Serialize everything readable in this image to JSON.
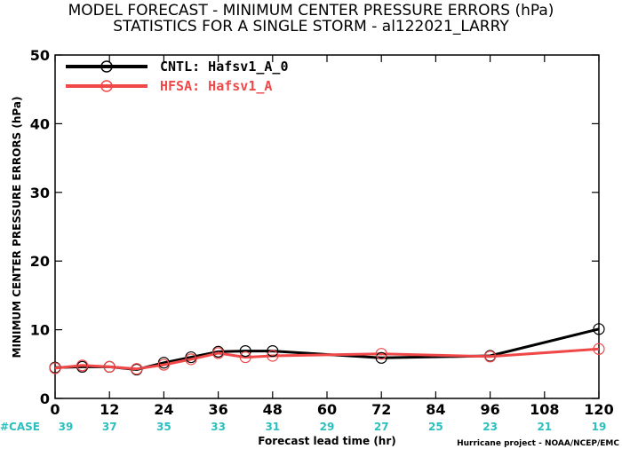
{
  "chart_data": {
    "type": "line",
    "title_lines": [
      "MODEL FORECAST - MINIMUM CENTER PRESSURE ERRORS (hPa)",
      "STATISTICS FOR A SINGLE STORM - al122021_LARRY"
    ],
    "xlabel": "Forecast lead time (hr)",
    "ylabel": "MINIMUM CENTER PRESSURE ERRORS (hPa)",
    "xlim": [
      0,
      120
    ],
    "ylim": [
      0,
      50
    ],
    "x_ticks": [
      0,
      12,
      24,
      36,
      48,
      60,
      72,
      84,
      96,
      108,
      120
    ],
    "y_ticks": [
      0,
      10,
      20,
      30,
      40,
      50
    ],
    "grid": false,
    "legend_position": "top-left",
    "series": [
      {
        "name": "CNTL: Hafsv1_A_0",
        "color": "#000000",
        "x": [
          0,
          6,
          12,
          18,
          24,
          30,
          36,
          42,
          48,
          72,
          96,
          120
        ],
        "values": [
          4.5,
          4.6,
          4.6,
          4.2,
          5.2,
          6.0,
          6.8,
          6.9,
          6.9,
          5.9,
          6.2,
          10.1
        ]
      },
      {
        "name": "HFSA: Hafsv1_A",
        "color": "#f04848",
        "x": [
          0,
          6,
          12,
          18,
          24,
          30,
          36,
          42,
          48,
          72,
          96,
          120
        ],
        "values": [
          4.4,
          4.8,
          4.6,
          4.3,
          4.9,
          5.7,
          6.6,
          6.0,
          6.2,
          6.5,
          6.1,
          7.2
        ]
      }
    ],
    "case_label": "#CASE",
    "case_x": [
      0,
      12,
      24,
      36,
      48,
      60,
      72,
      84,
      96,
      108,
      120
    ],
    "case_counts": [
      "39",
      "37",
      "35",
      "33",
      "31",
      "29",
      "27",
      "25",
      "23",
      "21",
      "19"
    ],
    "credit": "Hurricane project - NOAA/NCEP/EMC"
  }
}
